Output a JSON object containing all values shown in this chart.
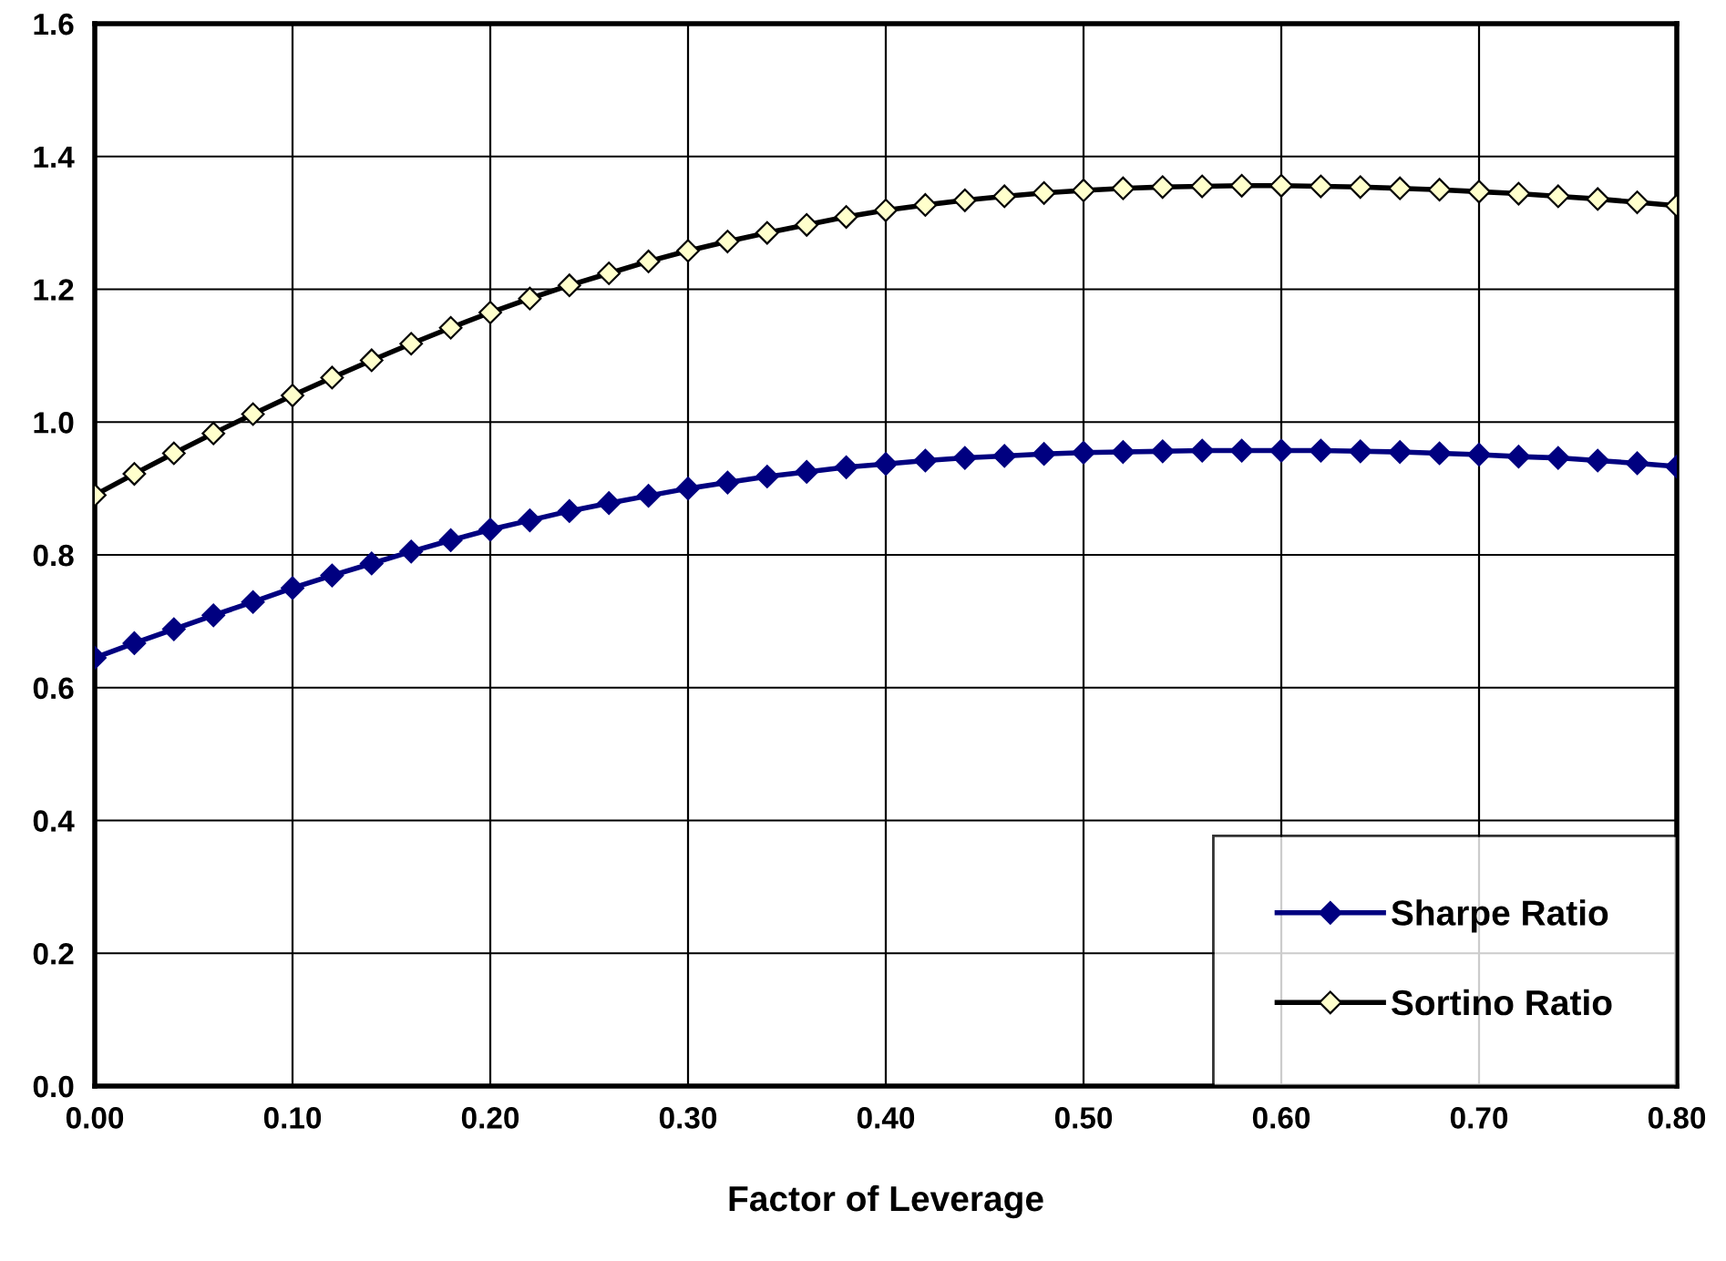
{
  "chart_data": {
    "type": "line",
    "xlabel": "Factor of Leverage",
    "x": [
      0,
      0.02,
      0.04,
      0.06,
      0.08,
      0.1,
      0.12,
      0.14,
      0.16,
      0.18,
      0.2,
      0.22,
      0.24,
      0.26,
      0.28,
      0.3,
      0.32,
      0.34,
      0.36,
      0.38,
      0.4,
      0.42,
      0.44,
      0.46,
      0.48,
      0.5,
      0.52,
      0.54,
      0.56,
      0.58,
      0.6,
      0.62,
      0.64,
      0.66,
      0.68,
      0.7,
      0.72,
      0.74,
      0.76,
      0.78,
      0.8
    ],
    "series": [
      {
        "name": "Sharpe Ratio",
        "color": "#000080",
        "marker": "diamond",
        "values": [
          0.645,
          0.667,
          0.688,
          0.709,
          0.729,
          0.75,
          0.769,
          0.787,
          0.805,
          0.822,
          0.838,
          0.852,
          0.866,
          0.878,
          0.889,
          0.9,
          0.909,
          0.918,
          0.925,
          0.932,
          0.937,
          0.942,
          0.946,
          0.949,
          0.952,
          0.954,
          0.955,
          0.956,
          0.957,
          0.957,
          0.957,
          0.957,
          0.956,
          0.955,
          0.953,
          0.951,
          0.948,
          0.946,
          0.942,
          0.938,
          0.933
        ]
      },
      {
        "name": "Sortino Ratio",
        "color": "#000000",
        "marker": "diamond",
        "values": [
          0.89,
          0.922,
          0.953,
          0.983,
          1.012,
          1.04,
          1.067,
          1.093,
          1.118,
          1.142,
          1.165,
          1.186,
          1.206,
          1.224,
          1.242,
          1.258,
          1.272,
          1.285,
          1.297,
          1.309,
          1.319,
          1.327,
          1.334,
          1.34,
          1.345,
          1.349,
          1.352,
          1.354,
          1.355,
          1.356,
          1.356,
          1.355,
          1.354,
          1.352,
          1.35,
          1.347,
          1.344,
          1.34,
          1.336,
          1.331,
          1.326
        ]
      }
    ],
    "xlim": [
      0,
      0.8
    ],
    "xticks": [
      {
        "value": 0,
        "label": "0.00"
      },
      {
        "value": 0.1,
        "label": "0.10"
      },
      {
        "value": 0.2,
        "label": "0.20"
      },
      {
        "value": 0.3,
        "label": "0.30"
      },
      {
        "value": 0.4,
        "label": "0.40"
      },
      {
        "value": 0.5,
        "label": "0.50"
      },
      {
        "value": 0.6,
        "label": "0.60"
      },
      {
        "value": 0.7,
        "label": "0.70"
      },
      {
        "value": 0.8,
        "label": "0.80"
      }
    ],
    "ylim": [
      0,
      1.6
    ],
    "yticks": [
      {
        "value": 0,
        "label": "0.0"
      },
      {
        "value": 0.2,
        "label": "0.2"
      },
      {
        "value": 0.4,
        "label": "0.4"
      },
      {
        "value": 0.6,
        "label": "0.6"
      },
      {
        "value": 0.8,
        "label": "0.8"
      },
      {
        "value": 1.0,
        "label": "1.0"
      },
      {
        "value": 1.2,
        "label": "1.2"
      },
      {
        "value": 1.4,
        "label": "1.4"
      },
      {
        "value": 1.6,
        "label": "1.6"
      }
    ],
    "grid": true,
    "legend": "bottom right",
    "line_style": "solid"
  }
}
